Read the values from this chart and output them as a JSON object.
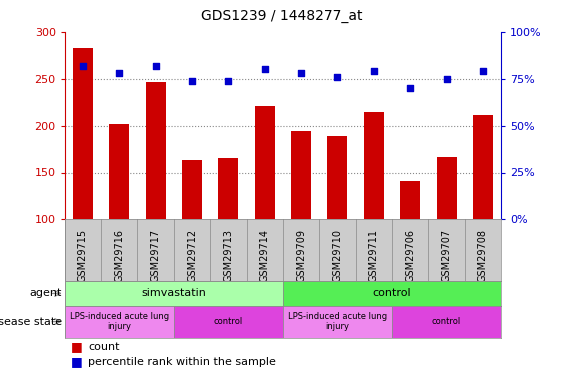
{
  "title": "GDS1239 / 1448277_at",
  "samples": [
    "GSM29715",
    "GSM29716",
    "GSM29717",
    "GSM29712",
    "GSM29713",
    "GSM29714",
    "GSM29709",
    "GSM29710",
    "GSM29711",
    "GSM29706",
    "GSM29707",
    "GSM29708"
  ],
  "counts": [
    283,
    202,
    247,
    163,
    166,
    221,
    194,
    189,
    215,
    141,
    167,
    211
  ],
  "percentiles": [
    82,
    78,
    82,
    74,
    74,
    80,
    78,
    76,
    79,
    70,
    75,
    79
  ],
  "ymin": 100,
  "ymax": 300,
  "yticks": [
    100,
    150,
    200,
    250,
    300
  ],
  "y2ticks": [
    0,
    25,
    50,
    75,
    100
  ],
  "bar_color": "#cc0000",
  "dot_color": "#0000cc",
  "bar_bottom": 100,
  "agent_groups": [
    {
      "label": "simvastatin",
      "start": 0,
      "end": 6,
      "color": "#aaffaa"
    },
    {
      "label": "control",
      "start": 6,
      "end": 12,
      "color": "#55ee55"
    }
  ],
  "disease_groups": [
    {
      "label": "LPS-induced acute lung\ninjury",
      "start": 0,
      "end": 3,
      "color": "#ee88ee"
    },
    {
      "label": "control",
      "start": 3,
      "end": 6,
      "color": "#dd44dd"
    },
    {
      "label": "LPS-induced acute lung\ninjury",
      "start": 6,
      "end": 9,
      "color": "#ee88ee"
    },
    {
      "label": "control",
      "start": 9,
      "end": 12,
      "color": "#dd44dd"
    }
  ],
  "grid_color": "#888888",
  "bg_color": "#ffffff",
  "tick_bg_color": "#cccccc",
  "axis_color_left": "#cc0000",
  "axis_color_right": "#0000cc",
  "border_color": "#888888",
  "agent_label_color": "#555555",
  "disease_label_color": "#555555"
}
